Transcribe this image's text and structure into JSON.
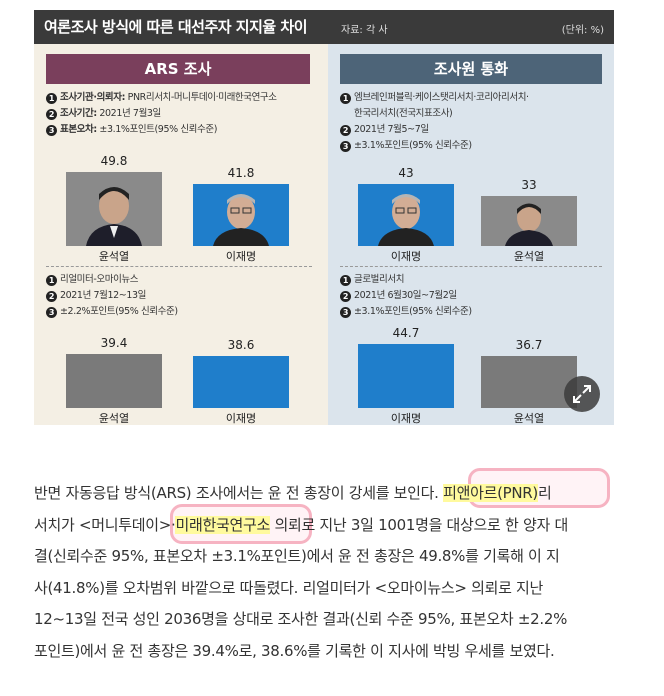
{
  "infographic": {
    "title": "여론조사 방식에 따른 대선주자 지지율 차이",
    "source": "자료: 각 사",
    "unit": "(단위: %)",
    "left_panel": {
      "header": "ARS 조사",
      "survey1": {
        "line1_label": "조사기관·의뢰자:",
        "line1_value": "PNR리서치-머니투데이·미래한국연구소",
        "line2_label": "조사기간:",
        "line2_value": "2021년 7월3일",
        "line3_label": "표본오차:",
        "line3_value": "±3.1%포인트(95% 신뢰수준)",
        "values": [
          "49.8",
          "41.8"
        ],
        "candidates": [
          "윤석열",
          "이재명"
        ]
      },
      "survey2": {
        "line1": "리얼미터-오마이뉴스",
        "line2": "2021년 7월12~13일",
        "line3": "±2.2%포인트(95% 신뢰수준)",
        "values": [
          "39.4",
          "38.6"
        ],
        "candidates": [
          "윤석열",
          "이재명"
        ]
      }
    },
    "right_panel": {
      "header": "조사원 통화",
      "survey1": {
        "line1a": "엠브레인퍼블릭·케이스탯리서치·코리아리서치·",
        "line1b": "한국리서치(전국지표조사)",
        "line2": "2021년 7월5~7일",
        "line3": "±3.1%포인트(95% 신뢰수준)",
        "values": [
          "43",
          "33"
        ],
        "candidates": [
          "이재명",
          "윤석열"
        ]
      },
      "survey2": {
        "line1": "글로벌리서치",
        "line2": "2021년 6월30일~7월2일",
        "line3": "±3.1%포인트(95% 신뢰수준)",
        "values": [
          "44.7",
          "36.7"
        ],
        "candidates": [
          "이재명",
          "윤석열"
        ]
      }
    },
    "step_numbers": [
      "1",
      "2",
      "3"
    ]
  },
  "expand_icon": "expand-arrows-icon",
  "article": {
    "l1a": "반면 자동응답 방식(ARS) 조사에서는 윤 전 총장이 강세를 보인다. ",
    "l1_hl": "피앤아르(PNR)",
    "l1b": "리",
    "l2a": "서치가 <머니투데이>·",
    "l2_hl": "미래한국연구소",
    "l2b": " 의뢰로 지난 3일 1001명을 대상으로 한 양자 대",
    "l3": "결(신뢰수준 95%, 표본오차 ±3.1%포인트)에서 윤 전 총장은 49.8%를 기록해 이 지",
    "l4": "사(41.8%)를 오차범위 바깥으로 따돌렸다. 리얼미터가 <오마이뉴스> 의뢰로 지난",
    "l5": "12~13일 전국 성인 2036명을 상대로 조사한 결과(신뢰 수준 95%, 표본오차 ±2.2%",
    "l6": "포인트)에서 윤 전 총장은 39.4%로, 38.6%를 기록한 이 지사에 박빙 우세를 보였다."
  },
  "colors": {
    "ars_header": "#7a3f5c",
    "phone_header": "#4d6478",
    "gray_bar": "#7a7a7a",
    "blue_bar": "#1f7ecb",
    "highlight": "#fffa9e",
    "ring": "#f6b3c2"
  }
}
